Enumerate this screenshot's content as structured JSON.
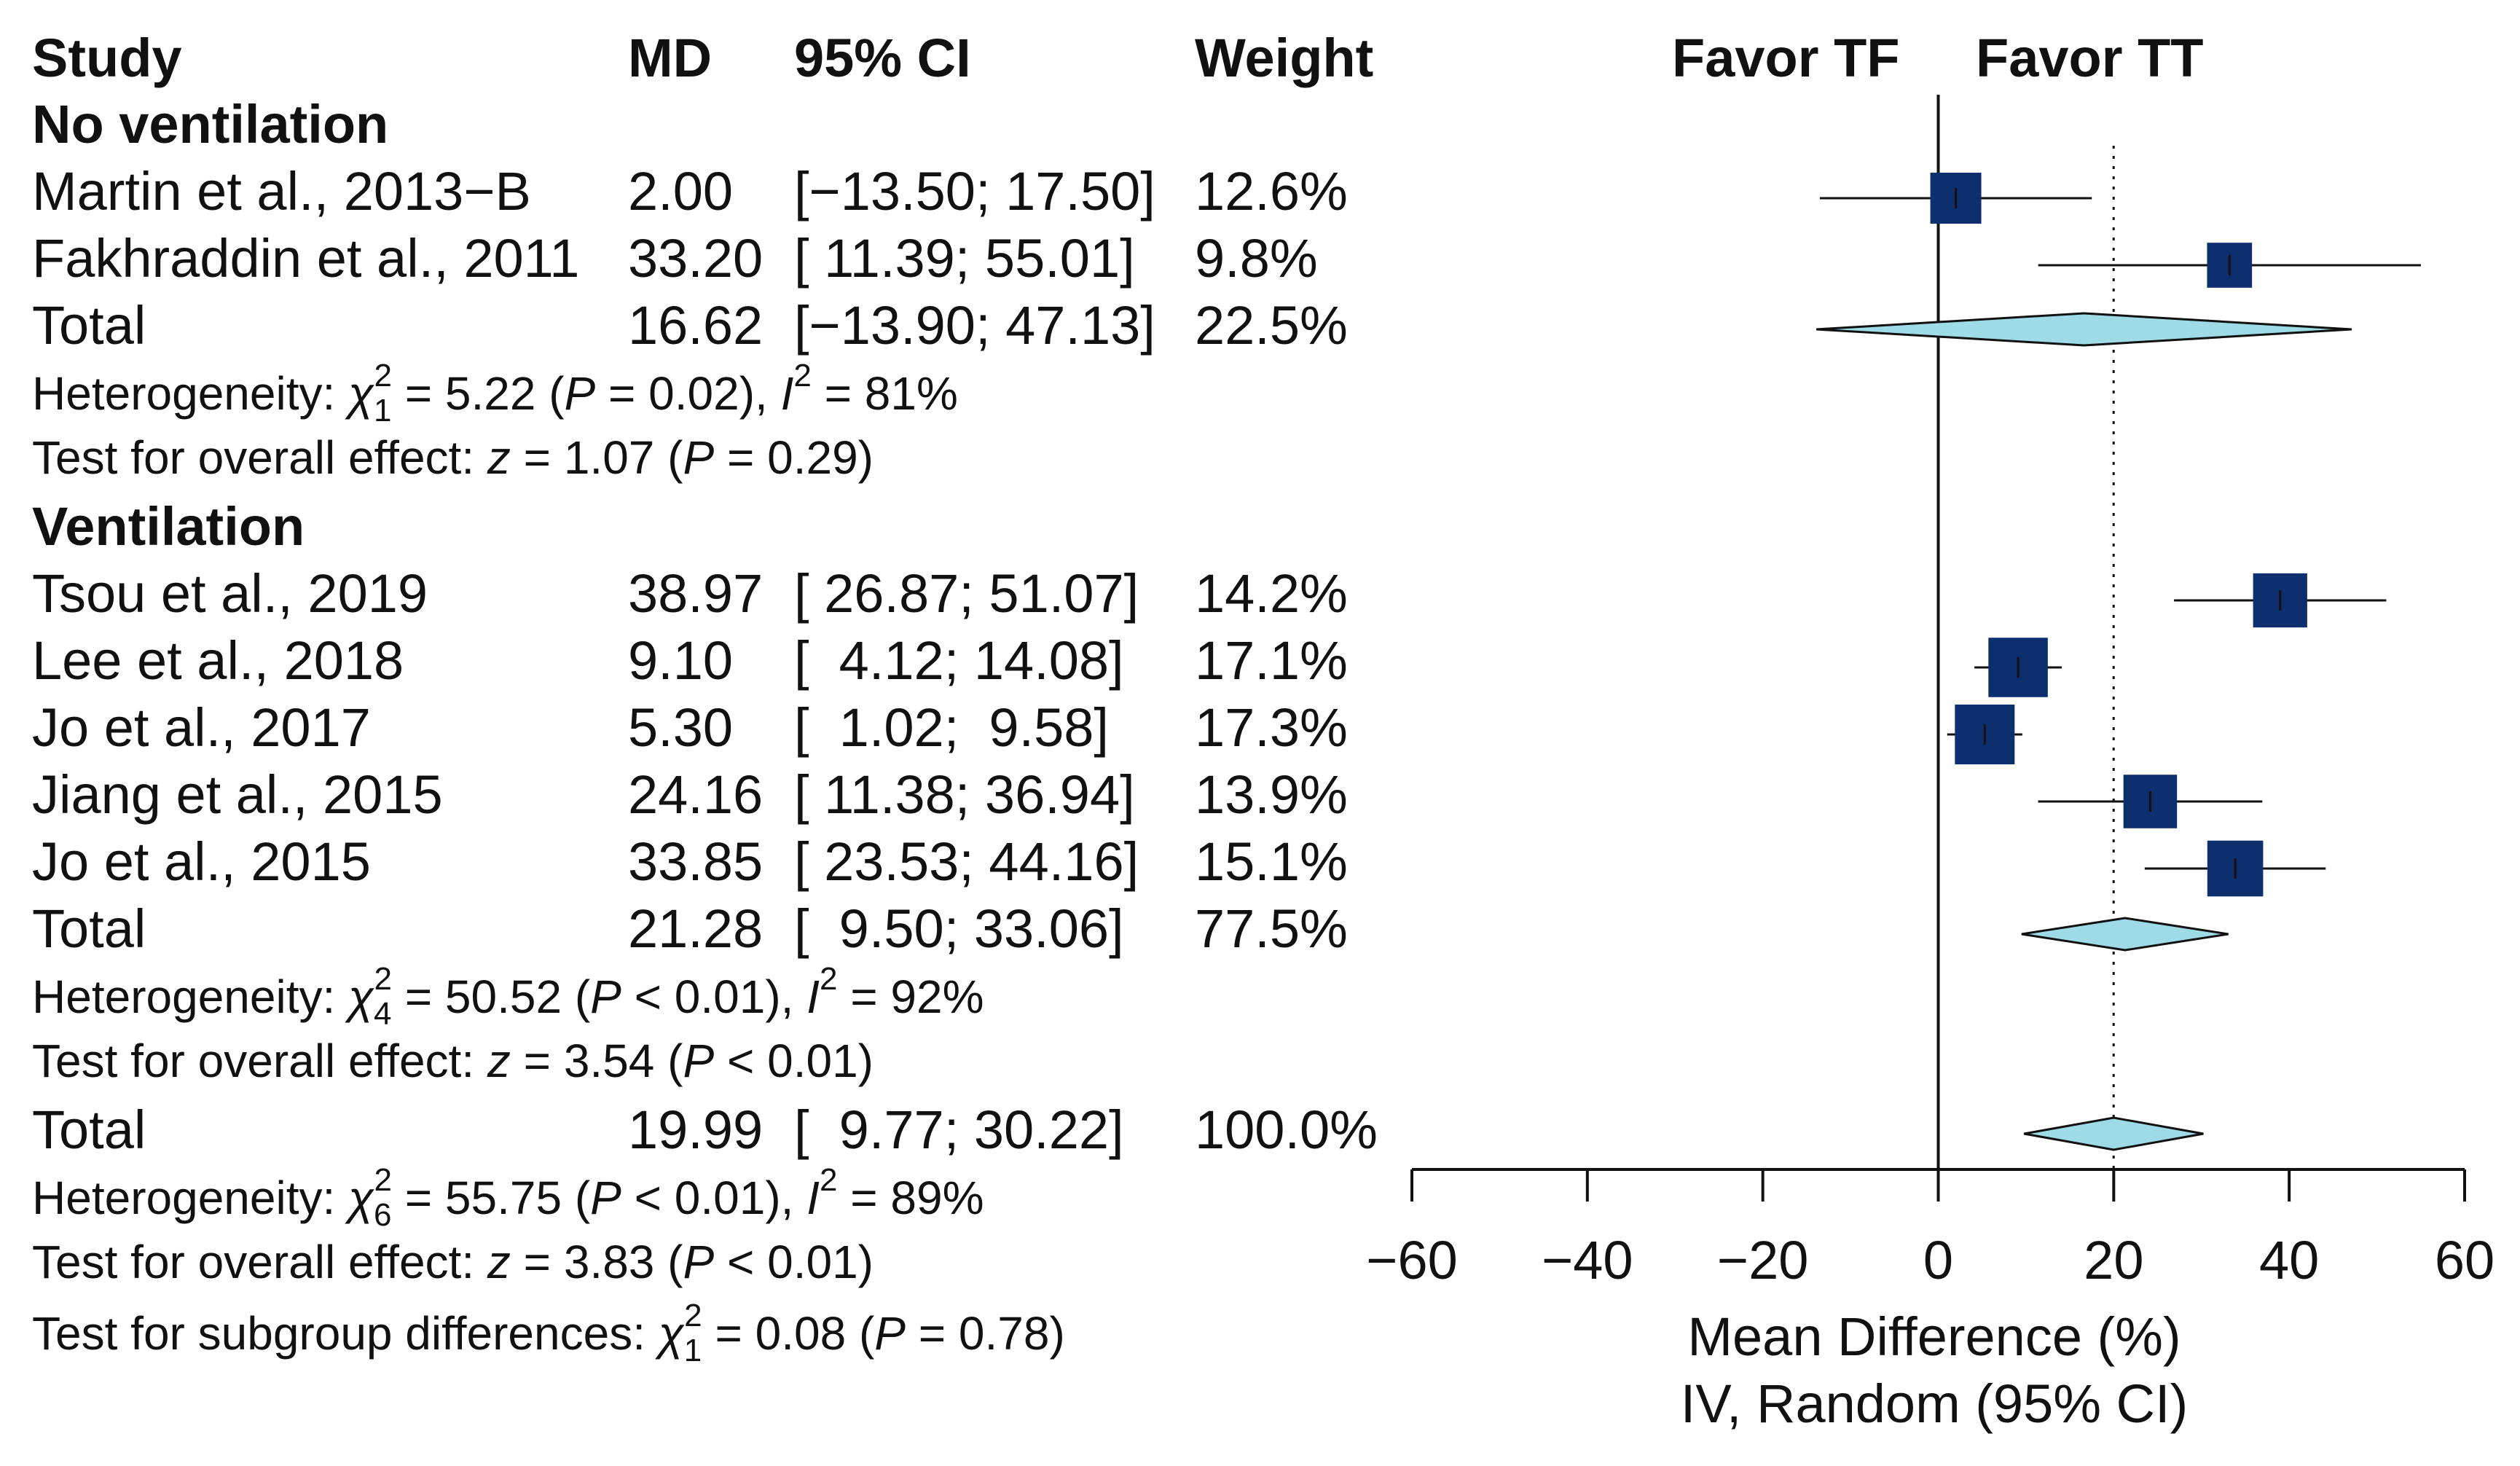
{
  "chart_data": {
    "type": "forest",
    "headers": {
      "study": "Study",
      "md": "MD",
      "ci": "95% CI",
      "weight": "Weight"
    },
    "favor_left": "Favor TF",
    "favor_right": "Favor TT",
    "groups": [
      {
        "title": "No ventilation",
        "studies": [
          {
            "name": "Martin et al., 2013−B",
            "md": 2.0,
            "lower": -13.5,
            "upper": 17.5,
            "md_text": "2.00",
            "ci_text": "[−13.50; 17.50]",
            "weight_text": "12.6%",
            "weight": 12.6
          },
          {
            "name": "Fakhraddin et al., 2011",
            "md": 33.2,
            "lower": 11.39,
            "upper": 55.01,
            "md_text": "33.20",
            "ci_text": "[ 11.39; 55.01]",
            "weight_text": "9.8%",
            "weight": 9.8
          }
        ],
        "total": {
          "label": "Total",
          "md": 16.62,
          "lower": -13.9,
          "upper": 47.13,
          "md_text": "16.62",
          "ci_text": "[−13.90; 47.13]",
          "weight_text": "22.5%"
        },
        "heterogeneity": {
          "prefix": "Heterogeneity: ",
          "chi_symbol": "χ",
          "df": "1",
          "chi_text": " = 5.22 (",
          "p_symbol": "P",
          "p_text": " = 0.02), ",
          "i_symbol": "I",
          "i_text": " = 81%"
        },
        "overall": {
          "prefix": "Test for overall effect: ",
          "z_symbol": "z",
          "z_text": " = 1.07 (",
          "p_symbol": "P",
          "p_text": " = 0.29)"
        }
      },
      {
        "title": "Ventilation",
        "studies": [
          {
            "name": "Tsou et al., 2019",
            "md": 38.97,
            "lower": 26.87,
            "upper": 51.07,
            "md_text": "38.97",
            "ci_text": "[ 26.87; 51.07]",
            "weight_text": "14.2%",
            "weight": 14.2
          },
          {
            "name": "Lee et al., 2018",
            "md": 9.1,
            "lower": 4.12,
            "upper": 14.08,
            "md_text": "9.10",
            "ci_text": "[  4.12; 14.08]",
            "weight_text": "17.1%",
            "weight": 17.1
          },
          {
            "name": "Jo et al., 2017",
            "md": 5.3,
            "lower": 1.02,
            "upper": 9.58,
            "md_text": "5.30",
            "ci_text": "[  1.02;  9.58]",
            "weight_text": "17.3%",
            "weight": 17.3
          },
          {
            "name": "Jiang et al., 2015",
            "md": 24.16,
            "lower": 11.38,
            "upper": 36.94,
            "md_text": "24.16",
            "ci_text": "[ 11.38; 36.94]",
            "weight_text": "13.9%",
            "weight": 13.9
          },
          {
            "name": "Jo et al., 2015",
            "md": 33.85,
            "lower": 23.53,
            "upper": 44.16,
            "md_text": "33.85",
            "ci_text": "[ 23.53; 44.16]",
            "weight_text": "15.1%",
            "weight": 15.1
          }
        ],
        "total": {
          "label": "Total",
          "md": 21.28,
          "lower": 9.5,
          "upper": 33.06,
          "md_text": "21.28",
          "ci_text": "[  9.50; 33.06]",
          "weight_text": "77.5%"
        },
        "heterogeneity": {
          "prefix": "Heterogeneity: ",
          "chi_symbol": "χ",
          "df": "4",
          "chi_text": " = 50.52 (",
          "p_symbol": "P",
          "p_text": " < 0.01), ",
          "i_symbol": "I",
          "i_text": " = 92%"
        },
        "overall": {
          "prefix": "Test for overall effect: ",
          "z_symbol": "z",
          "z_text": " = 3.54 (",
          "p_symbol": "P",
          "p_text": " < 0.01)"
        }
      }
    ],
    "overall_total": {
      "label": "Total",
      "md": 19.99,
      "lower": 9.77,
      "upper": 30.22,
      "md_text": "19.99",
      "ci_text": "[  9.77; 30.22]",
      "weight_text": "100.0%"
    },
    "overall_heterogeneity": {
      "prefix": "Heterogeneity: ",
      "chi_symbol": "χ",
      "df": "6",
      "chi_text": " = 55.75 (",
      "p_symbol": "P",
      "p_text": " < 0.01), ",
      "i_symbol": "I",
      "i_text": " = 89%"
    },
    "overall_effect": {
      "prefix": "Test for overall effect: ",
      "z_symbol": "z",
      "z_text": " = 3.83 (",
      "p_symbol": "P",
      "p_text": " < 0.01)"
    },
    "subgroup_test": {
      "prefix": "Test for subgroup differences: ",
      "chi_symbol": "χ",
      "df": "1",
      "chi_text": " = 0.08 (",
      "p_symbol": "P",
      "p_text": " = 0.78)"
    },
    "x_axis": {
      "min": -60,
      "max": 60,
      "ticks": [
        -60,
        -40,
        -20,
        0,
        20,
        40,
        60
      ],
      "tick_labels": [
        "−60",
        "−40",
        "−20",
        "0",
        "20",
        "40",
        "60"
      ],
      "label_line1": "Mean Difference (%)",
      "label_line2": "IV, Random (95% CI)"
    },
    "null_line": 0,
    "pooled_reference": 19.99,
    "colors": {
      "square": "#0e2f6e",
      "diamond": "#9fdbe6",
      "line": "#111111"
    }
  }
}
